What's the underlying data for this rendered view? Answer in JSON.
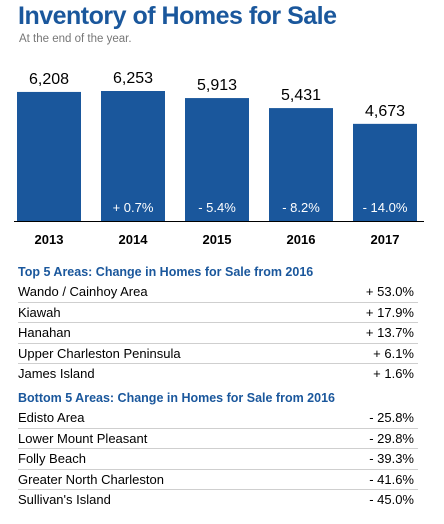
{
  "title": "Inventory of Homes for Sale",
  "subtitle": "At the end of the year.",
  "chart_data": {
    "type": "bar",
    "title": "Inventory of Homes for Sale",
    "subtitle": "At the end of the year.",
    "categories": [
      "2013",
      "2014",
      "2015",
      "2016",
      "2017"
    ],
    "values": [
      6208,
      6253,
      5913,
      5431,
      4673
    ],
    "value_labels": [
      "6,208",
      "6,253",
      "5,913",
      "5,431",
      "4,673"
    ],
    "change_labels": [
      "",
      "+ 0.7%",
      "- 5.4%",
      "- 8.2%",
      "- 14.0%"
    ],
    "bar_color": "#1a579c",
    "ylim": [
      0,
      6253
    ]
  },
  "top_areas": {
    "title": "Top 5 Areas: Change in Homes for Sale from 2016",
    "rows": [
      {
        "name": "Wando / Cainhoy Area",
        "value": "+ 53.0%"
      },
      {
        "name": "Kiawah",
        "value": "+ 17.9%"
      },
      {
        "name": "Hanahan",
        "value": "+ 13.7%"
      },
      {
        "name": "Upper Charleston Peninsula",
        "value": "+ 6.1%"
      },
      {
        "name": "James Island",
        "value": "+ 1.6%"
      }
    ]
  },
  "bottom_areas": {
    "title": "Bottom 5 Areas: Change in Homes for Sale from 2016",
    "rows": [
      {
        "name": "Edisto Area",
        "value": "- 25.8%"
      },
      {
        "name": "Lower Mount Pleasant",
        "value": "- 29.8%"
      },
      {
        "name": "Folly Beach",
        "value": "- 39.3%"
      },
      {
        "name": "Greater North Charleston",
        "value": "- 41.6%"
      },
      {
        "name": "Sullivan's Island",
        "value": "- 45.0%"
      }
    ]
  }
}
